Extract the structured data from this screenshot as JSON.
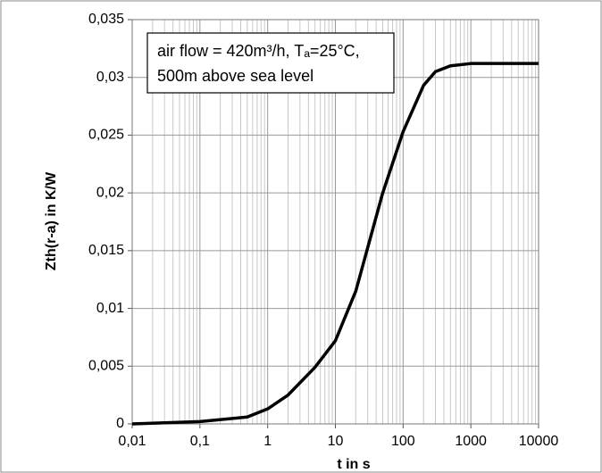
{
  "chart_data": {
    "type": "line",
    "annotation": [
      "air flow = 420m³/h, Tₐ=25°C,",
      "500m above sea level"
    ],
    "xlabel": "t in s",
    "ylabel": "Zth(r-a) in K/W",
    "x": [
      0.01,
      0.1,
      0.5,
      1,
      2,
      5,
      10,
      20,
      50,
      100,
      200,
      300,
      500,
      1000,
      10000
    ],
    "values": [
      0,
      0.0002,
      0.0006,
      0.0013,
      0.0025,
      0.0049,
      0.0072,
      0.0115,
      0.02,
      0.0253,
      0.0293,
      0.0305,
      0.031,
      0.0312,
      0.0312
    ],
    "color": "#000000",
    "xscale": "log",
    "xlim": [
      0.01,
      10000
    ],
    "xticks": [
      {
        "value": 0.01,
        "label": "0,01"
      },
      {
        "value": 0.1,
        "label": "0,1"
      },
      1,
      10,
      100,
      1000,
      10000
    ],
    "ylim": [
      0,
      0.035
    ],
    "yticks": [
      0,
      {
        "value": 0.005,
        "label": "0,005"
      },
      {
        "value": 0.01,
        "label": "0,01"
      },
      {
        "value": 0.015,
        "label": "0,015"
      },
      {
        "value": 0.02,
        "label": "0,02"
      },
      {
        "value": 0.025,
        "label": "0,025"
      },
      {
        "value": 0.03,
        "label": "0,03"
      },
      {
        "value": 0.035,
        "label": "0,035"
      }
    ],
    "grid": true,
    "minor_grid": true
  }
}
